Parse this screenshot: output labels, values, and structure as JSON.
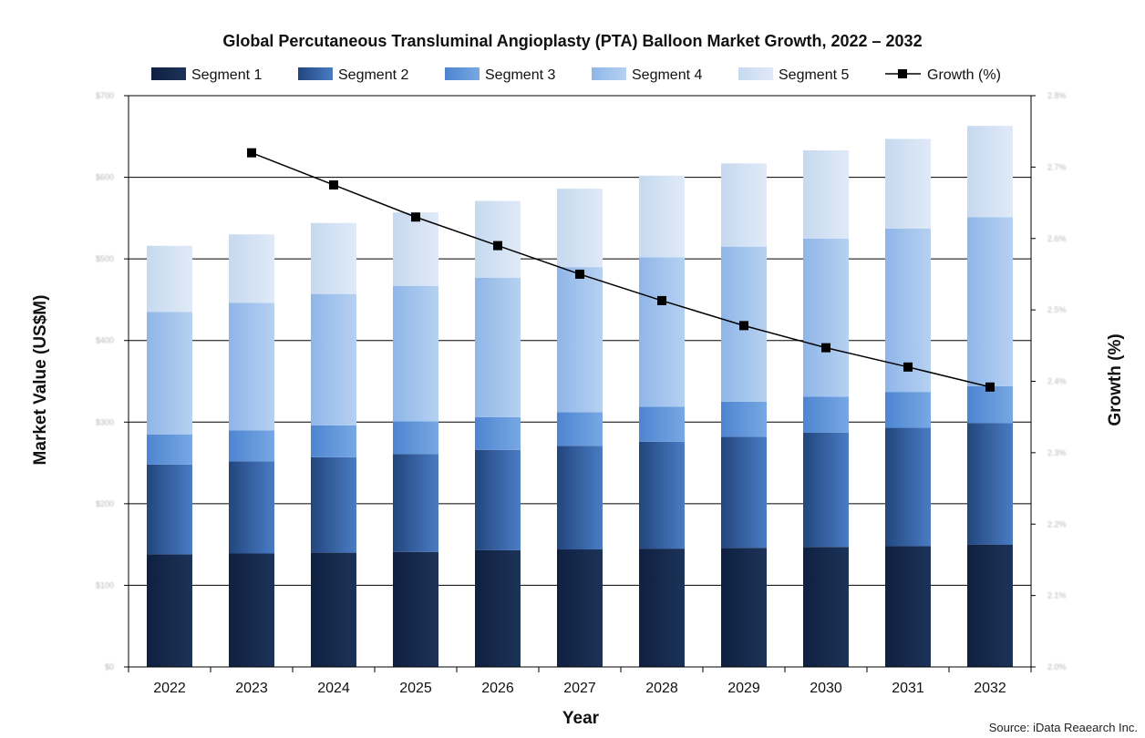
{
  "chart_data": {
    "type": "bar",
    "stacked": true,
    "title": "Global Percutaneous Transluminal Angioplasty (PTA) Balloon Market Growth, 2022 – 2032",
    "xlabel": "Year",
    "ylabel": "Market Value (US$M)",
    "y2label": "Growth (%)",
    "categories": [
      "2022",
      "2023",
      "2024",
      "2025",
      "2026",
      "2027",
      "2028",
      "2029",
      "2030",
      "2031",
      "2032"
    ],
    "ylim": [
      0,
      700
    ],
    "y_ticks": [
      "$0",
      "$100",
      "$200",
      "$300",
      "$400",
      "$500",
      "$600",
      "$700"
    ],
    "y2lim": [
      2.0,
      2.8
    ],
    "y2_ticks": [
      "2.0%",
      "2.1%",
      "2.2%",
      "2.3%",
      "2.4%",
      "2.5%",
      "2.6%",
      "2.7%",
      "2.8%"
    ],
    "series": [
      {
        "name": "Segment 1",
        "color": "#16294b",
        "values": [
          138,
          139,
          140,
          141,
          143,
          144,
          145,
          146,
          147,
          148,
          150
        ]
      },
      {
        "name": "Segment 2",
        "color": "#2f5da0",
        "values": [
          110,
          113,
          117,
          120,
          123,
          127,
          131,
          136,
          140,
          145,
          149
        ]
      },
      {
        "name": "Segment 3",
        "color": "#5d93d8",
        "values": [
          37,
          38,
          39,
          40,
          40,
          41,
          43,
          43,
          44,
          44,
          45
        ]
      },
      {
        "name": "Segment 4",
        "color": "#9ec2ec",
        "values": [
          150,
          156,
          161,
          166,
          171,
          178,
          183,
          190,
          194,
          200,
          207
        ]
      },
      {
        "name": "Segment 5",
        "color": "#d2e1f3",
        "values": [
          81,
          84,
          87,
          90,
          94,
          96,
          100,
          102,
          108,
          110,
          112
        ]
      }
    ],
    "line_series": {
      "name": "Growth (%)",
      "axis": "secondary",
      "values": [
        null,
        2.72,
        2.675,
        2.63,
        2.59,
        2.55,
        2.513,
        2.478,
        2.447,
        2.42,
        2.392
      ]
    },
    "grid": true,
    "legend": "top"
  },
  "source": "Source: iData Reaearch Inc."
}
